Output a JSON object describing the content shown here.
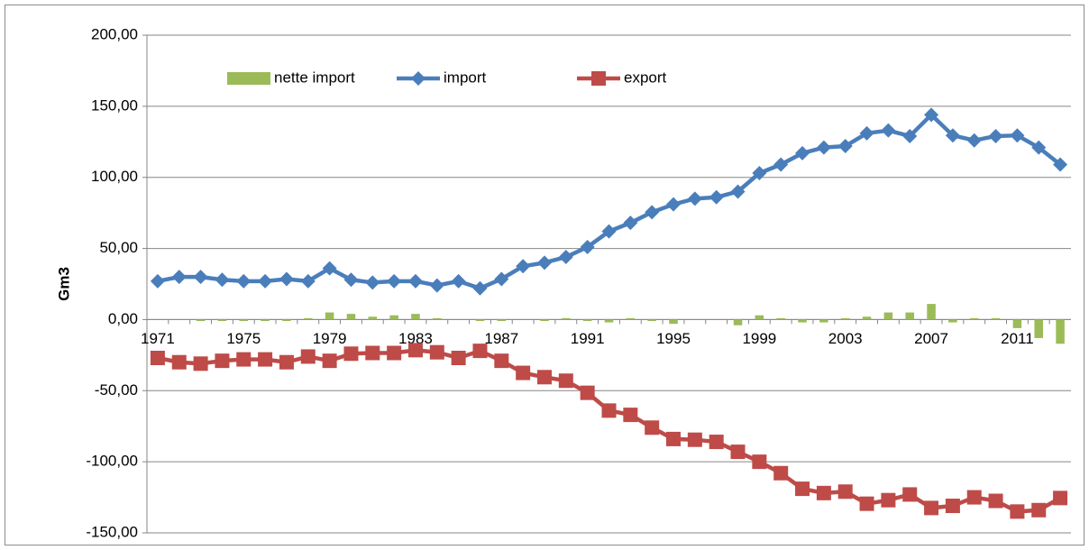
{
  "chart_data": {
    "type": "bar",
    "y_label": "Gm3",
    "categories": [
      "1971",
      null,
      null,
      null,
      "1975",
      null,
      null,
      null,
      "1979",
      null,
      null,
      null,
      "1983",
      null,
      null,
      null,
      "1987",
      null,
      null,
      null,
      "1991",
      null,
      null,
      null,
      "1995",
      null,
      null,
      null,
      "1999",
      null,
      null,
      null,
      "2003",
      null,
      null,
      null,
      "2007",
      null,
      null,
      null,
      "2011",
      null,
      null
    ],
    "series": [
      {
        "name": "nette import",
        "type": "bar",
        "color": "#9bbb59",
        "values": [
          0,
          0,
          -1,
          -1,
          -1,
          -1,
          -1,
          1,
          5,
          4,
          2,
          3,
          4,
          1,
          0,
          -1,
          -1,
          0,
          -1,
          1,
          -1,
          -2,
          1,
          -1,
          -3,
          0,
          0,
          -4,
          3,
          1,
          -2,
          -2,
          1,
          2,
          5,
          5,
          11,
          -2,
          1,
          1,
          -6,
          -13,
          -17
        ]
      },
      {
        "name": "import",
        "type": "line",
        "marker": "diamond",
        "color": "#4a7ebb",
        "values": [
          27,
          30,
          30,
          28,
          27,
          27,
          28.5,
          27,
          36,
          28,
          26,
          27,
          27,
          24,
          27,
          22,
          28.5,
          37.5,
          40,
          44,
          51,
          62,
          68,
          75.5,
          81,
          85,
          86,
          90,
          103,
          109,
          117,
          121,
          122,
          131,
          133,
          129,
          144,
          129.5,
          126,
          129,
          129.5,
          121,
          109
        ]
      },
      {
        "name": "export",
        "type": "line",
        "marker": "square",
        "color": "#be4b48",
        "values": [
          -27,
          -30,
          -31,
          -29,
          -28,
          -28,
          -30,
          -26,
          -29,
          -24,
          -23.5,
          -23.5,
          -21.5,
          -23,
          -27,
          -22,
          -29,
          -37.5,
          -40.5,
          -43,
          -51.5,
          -64,
          -67,
          -76,
          -84,
          -84.5,
          -86,
          -93,
          -100,
          -108,
          -119,
          -122,
          -121,
          -129.5,
          -127,
          -123,
          -132.5,
          -131,
          -125,
          -127.5,
          -135,
          -134,
          -125.5
        ]
      }
    ],
    "ylim": [
      -150,
      200
    ],
    "yticks": [
      {
        "value": -150,
        "label": "-150,00"
      },
      {
        "value": -100,
        "label": "-100,00"
      },
      {
        "value": -50,
        "label": "-50,00"
      },
      {
        "value": 0,
        "label": "0,00"
      },
      {
        "value": 50,
        "label": "50,00"
      },
      {
        "value": 100,
        "label": "100,00"
      },
      {
        "value": 150,
        "label": "150,00"
      },
      {
        "value": 200,
        "label": "200,00"
      }
    ],
    "grid": true,
    "legend": "top"
  }
}
